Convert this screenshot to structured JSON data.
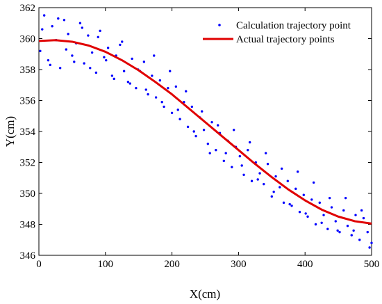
{
  "chart_data": {
    "type": "scatter",
    "xlabel": "X(cm)",
    "ylabel": "Y(cm)",
    "xlim": [
      0,
      500
    ],
    "ylim": [
      346,
      362
    ],
    "xticks": [
      "0",
      "100",
      "200",
      "300",
      "400",
      "500"
    ],
    "yticks": [
      "346",
      "348",
      "350",
      "352",
      "354",
      "356",
      "358",
      "360",
      "362"
    ],
    "grid": false,
    "legend_position": "top-right",
    "series": [
      {
        "name": "Calculation trajectory point",
        "kind": "scatter",
        "color": "#0000ff",
        "x": [
          2,
          8,
          14,
          20,
          26,
          32,
          38,
          44,
          50,
          56,
          62,
          68,
          74,
          80,
          86,
          92,
          98,
          104,
          110,
          116,
          122,
          128,
          134,
          140,
          146,
          152,
          158,
          164,
          170,
          176,
          182,
          188,
          194,
          200,
          206,
          212,
          218,
          224,
          230,
          236,
          242,
          248,
          254,
          260,
          266,
          272,
          278,
          284,
          290,
          296,
          302,
          308,
          314,
          320,
          326,
          332,
          338,
          344,
          350,
          356,
          362,
          368,
          374,
          380,
          386,
          392,
          398,
          404,
          410,
          416,
          422,
          428,
          434,
          440,
          446,
          452,
          458,
          464,
          470,
          476,
          482,
          488,
          494,
          500,
          5,
          17,
          29,
          41,
          53,
          65,
          77,
          89,
          101,
          113,
          125,
          137,
          149,
          161,
          173,
          185,
          197,
          209,
          221,
          233,
          245,
          257,
          269,
          281,
          293,
          305,
          317,
          329,
          341,
          353,
          365,
          377,
          389,
          401,
          413,
          425,
          437,
          449,
          461,
          473,
          485,
          497
        ],
        "y": [
          359.2,
          361.5,
          358.6,
          360.8,
          359.9,
          358.1,
          361.2,
          360.3,
          358.9,
          359.7,
          361.0,
          358.4,
          360.2,
          359.1,
          357.8,
          360.5,
          358.8,
          359.4,
          357.6,
          358.9,
          359.6,
          357.9,
          357.2,
          358.7,
          356.8,
          357.9,
          358.5,
          356.4,
          357.6,
          356.2,
          357.3,
          355.6,
          356.8,
          355.2,
          356.9,
          354.8,
          355.9,
          354.3,
          355.6,
          353.7,
          354.9,
          354.1,
          353.2,
          354.6,
          352.8,
          353.9,
          352.1,
          353.4,
          351.7,
          353.0,
          352.4,
          351.2,
          352.8,
          350.8,
          352.0,
          351.3,
          350.6,
          351.9,
          349.8,
          351.1,
          350.4,
          349.4,
          350.8,
          349.2,
          350.3,
          348.8,
          349.9,
          348.5,
          349.6,
          348.0,
          349.4,
          348.6,
          347.7,
          349.1,
          348.2,
          347.5,
          348.9,
          347.9,
          347.3,
          348.6,
          347.0,
          348.4,
          347.5,
          346.8,
          360.6,
          358.3,
          361.3,
          359.3,
          358.5,
          360.7,
          358.1,
          360.1,
          358.6,
          357.4,
          359.8,
          357.1,
          358.0,
          356.7,
          358.9,
          355.9,
          357.9,
          355.4,
          356.6,
          354.0,
          355.3,
          352.6,
          354.4,
          352.6,
          354.1,
          351.8,
          353.3,
          350.9,
          352.6,
          350.1,
          351.6,
          349.3,
          351.4,
          348.7,
          350.7,
          348.1,
          349.7,
          347.6,
          349.7,
          347.6,
          348.9,
          346.5
        ]
      },
      {
        "name": "Actual trajectory points",
        "kind": "line",
        "color": "#e00000",
        "x": [
          0,
          25,
          50,
          75,
          100,
          125,
          150,
          175,
          200,
          225,
          250,
          275,
          300,
          325,
          350,
          375,
          400,
          425,
          450,
          475,
          500
        ],
        "y": [
          359.85,
          359.9,
          359.8,
          359.55,
          359.15,
          358.6,
          357.95,
          357.2,
          356.4,
          355.5,
          354.6,
          353.7,
          352.8,
          351.9,
          351.05,
          350.25,
          349.55,
          348.95,
          348.5,
          348.2,
          348.05
        ]
      }
    ]
  }
}
